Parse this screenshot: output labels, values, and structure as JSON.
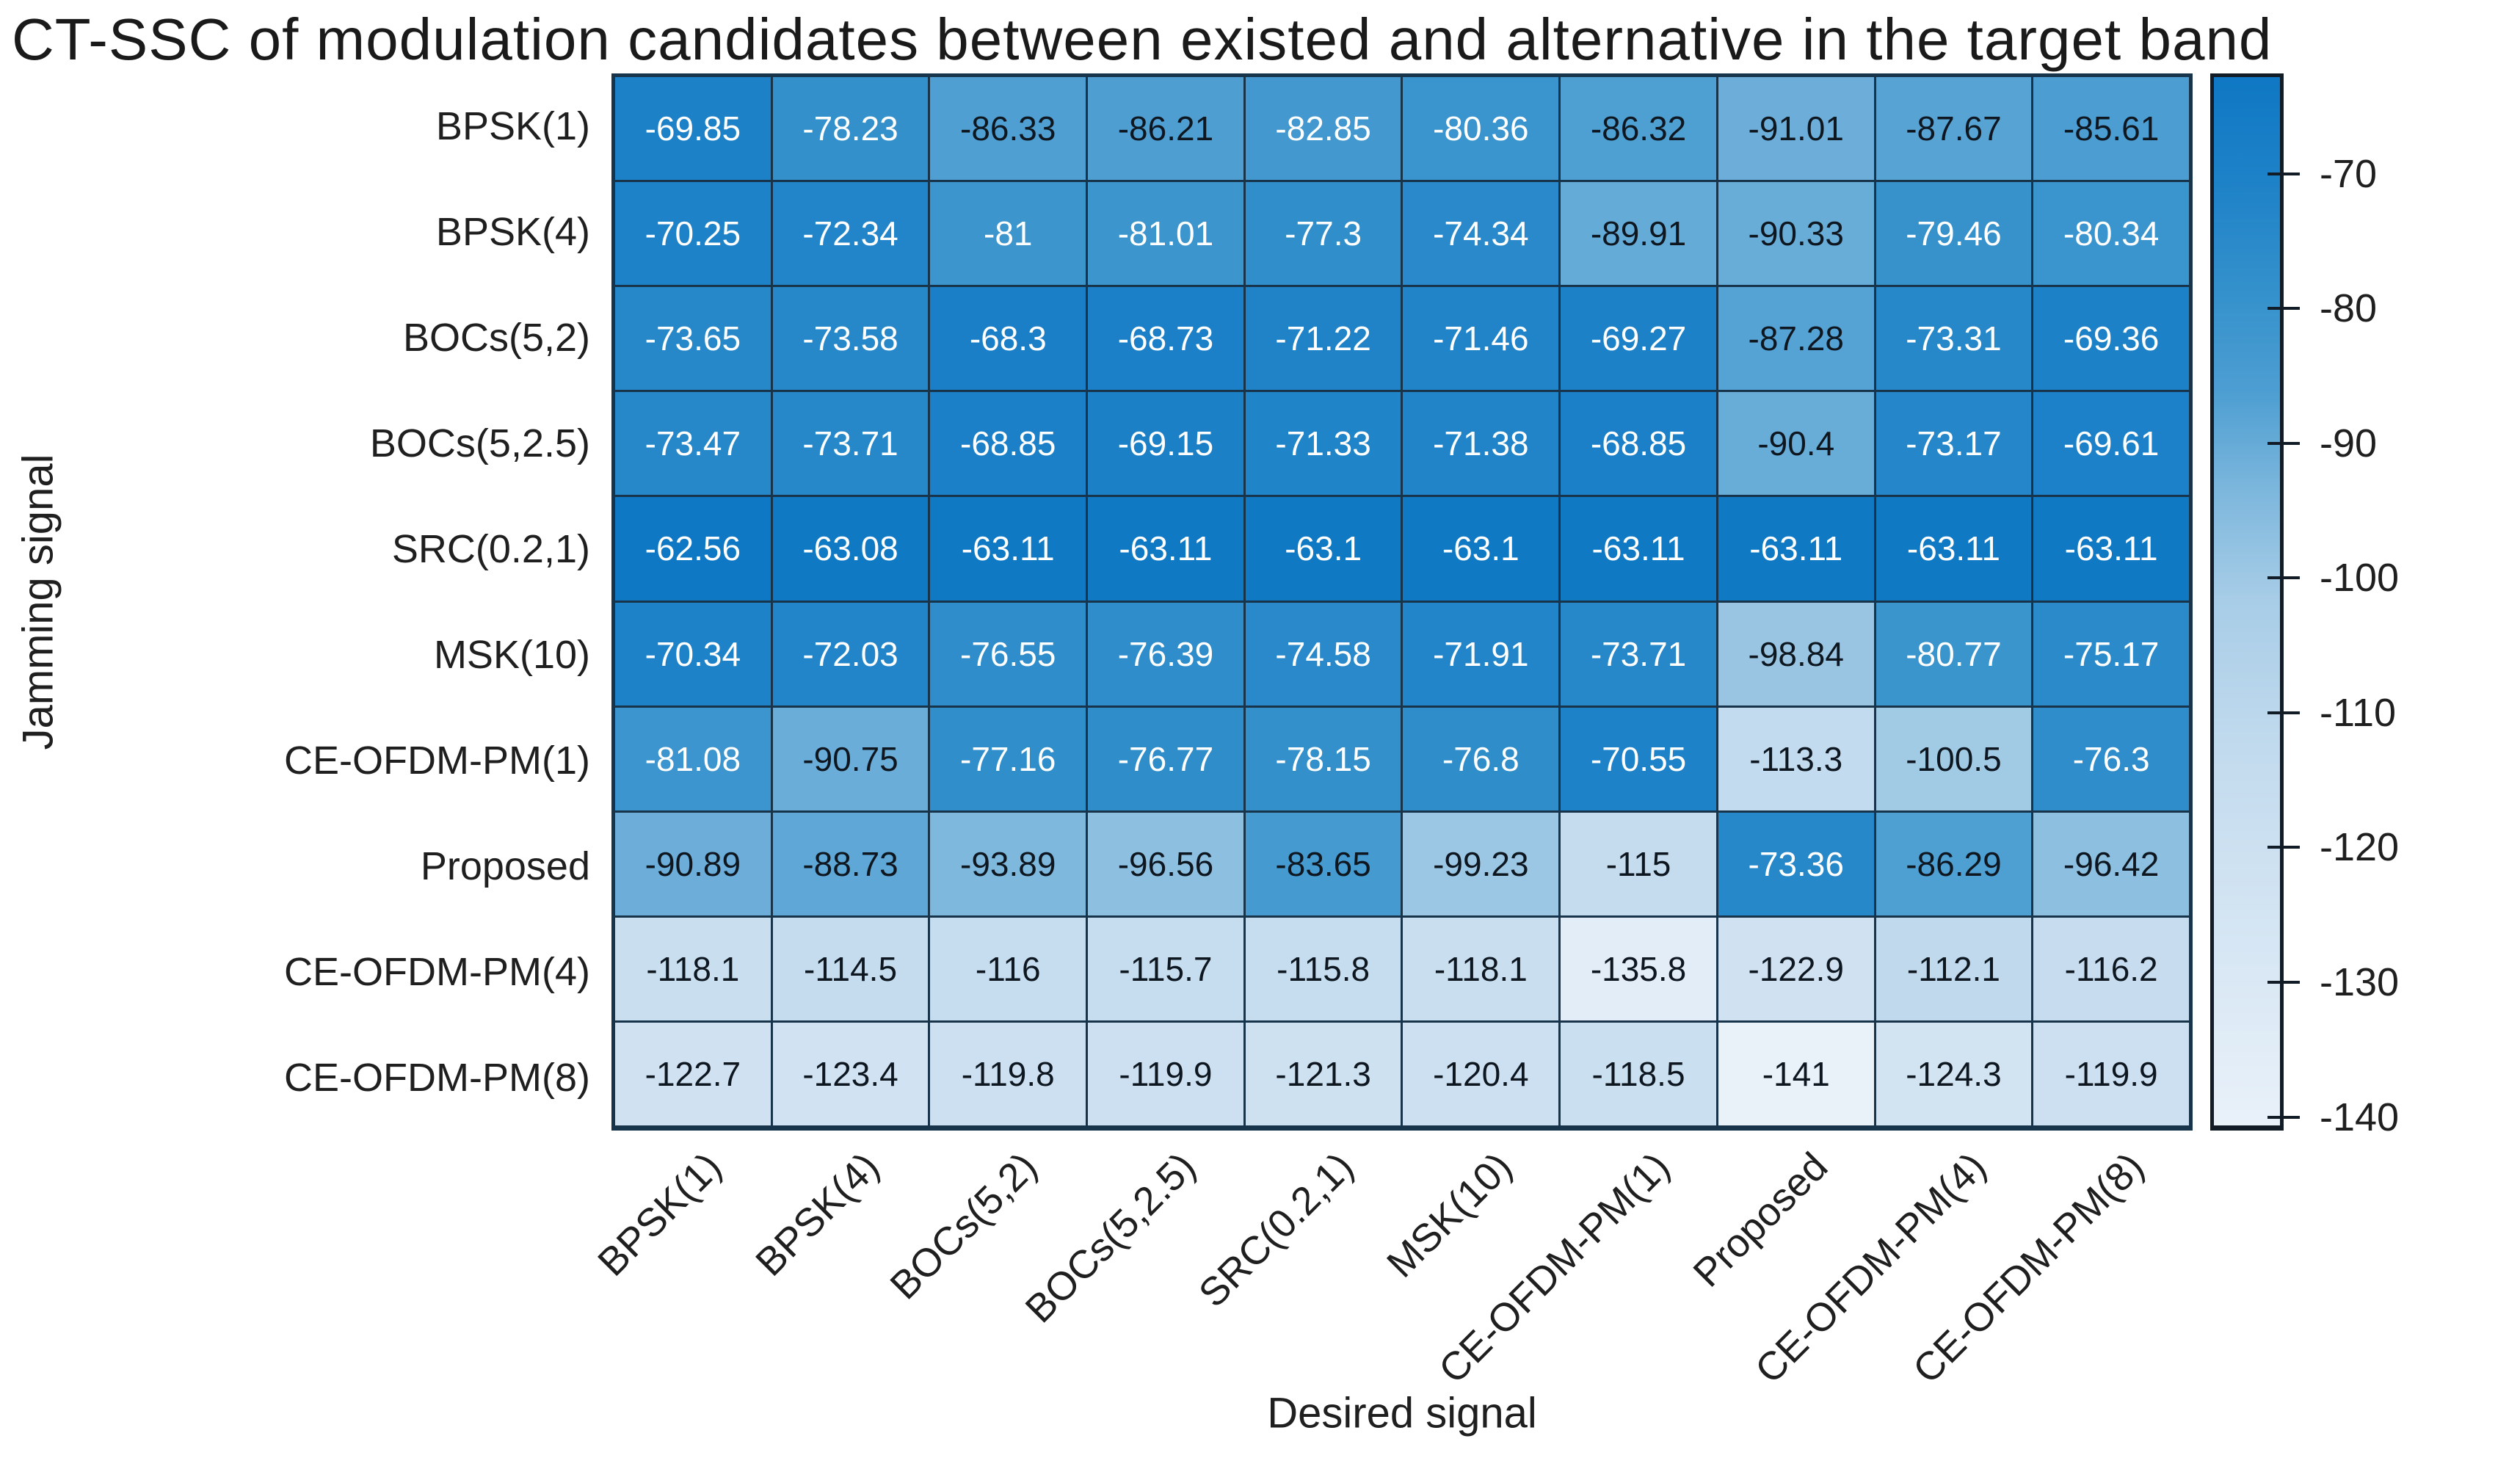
{
  "chart_data": {
    "type": "heatmap",
    "title": "CT-SSC of modulation candidates between existed and alternative in the target band",
    "xlabel": "Desired signal",
    "ylabel": "Jamming signal",
    "x_categories": [
      "BPSK(1)",
      "BPSK(4)",
      "BOCs(5,2)",
      "BOCs(5,2.5)",
      "SRC(0.2,1)",
      "MSK(10)",
      "CE-OFDM-PM(1)",
      "Proposed",
      "CE-OFDM-PM(4)",
      "CE-OFDM-PM(8)"
    ],
    "y_categories": [
      "BPSK(1)",
      "BPSK(4)",
      "BOCs(5,2)",
      "BOCs(5,2.5)",
      "SRC(0.2,1)",
      "MSK(10)",
      "CE-OFDM-PM(1)",
      "Proposed",
      "CE-OFDM-PM(4)",
      "CE-OFDM-PM(8)"
    ],
    "values": [
      [
        -69.85,
        -78.23,
        -86.33,
        -86.21,
        -82.85,
        -80.36,
        -86.32,
        -91.01,
        -87.67,
        -85.61
      ],
      [
        -70.25,
        -72.34,
        -81,
        -81.01,
        -77.3,
        -74.34,
        -89.91,
        -90.33,
        -79.46,
        -80.34
      ],
      [
        -73.65,
        -73.58,
        -68.3,
        -68.73,
        -71.22,
        -71.46,
        -69.27,
        -87.28,
        -73.31,
        -69.36
      ],
      [
        -73.47,
        -73.71,
        -68.85,
        -69.15,
        -71.33,
        -71.38,
        -68.85,
        -90.4,
        -73.17,
        -69.61
      ],
      [
        -62.56,
        -63.08,
        -63.11,
        -63.11,
        -63.1,
        -63.1,
        -63.11,
        -63.11,
        -63.11,
        -63.11
      ],
      [
        -70.34,
        -72.03,
        -76.55,
        -76.39,
        -74.58,
        -71.91,
        -73.71,
        -98.84,
        -80.77,
        -75.17
      ],
      [
        -81.08,
        -90.75,
        -77.16,
        -76.77,
        -78.15,
        -76.8,
        -70.55,
        -113.3,
        -100.5,
        -76.3
      ],
      [
        -90.89,
        -88.73,
        -93.89,
        -96.56,
        -83.65,
        -99.23,
        -115,
        -73.36,
        -86.29,
        -96.42
      ],
      [
        -118.1,
        -114.5,
        -116,
        -115.7,
        -115.8,
        -118.1,
        -135.8,
        -122.9,
        -112.1,
        -116.2
      ],
      [
        -122.7,
        -123.4,
        -119.8,
        -119.9,
        -121.3,
        -120.4,
        -118.5,
        -141,
        -124.3,
        -119.9
      ]
    ],
    "color_scale": {
      "min": -141,
      "max": -62.56,
      "stops": [
        [
          0.0,
          "#E9F1F9"
        ],
        [
          0.35,
          "#C3DBEE"
        ],
        [
          0.5,
          "#A8CDE7"
        ],
        [
          0.6,
          "#7FB8DD"
        ],
        [
          0.7,
          "#4D9ED2"
        ],
        [
          0.8,
          "#3390CB"
        ],
        [
          0.9,
          "#1E82C8"
        ],
        [
          1.0,
          "#0F78C4"
        ]
      ],
      "grid_line_color": "#17344a",
      "white_text": "#FFFFFF",
      "dark_text": "#0E1720",
      "white_text_threshold": 0.735
    },
    "colorbar": {
      "position": "right",
      "ticks": [
        -70,
        -80,
        -90,
        -100,
        -110,
        -120,
        -130,
        -140
      ]
    },
    "grid": true,
    "legend_position": "right"
  }
}
